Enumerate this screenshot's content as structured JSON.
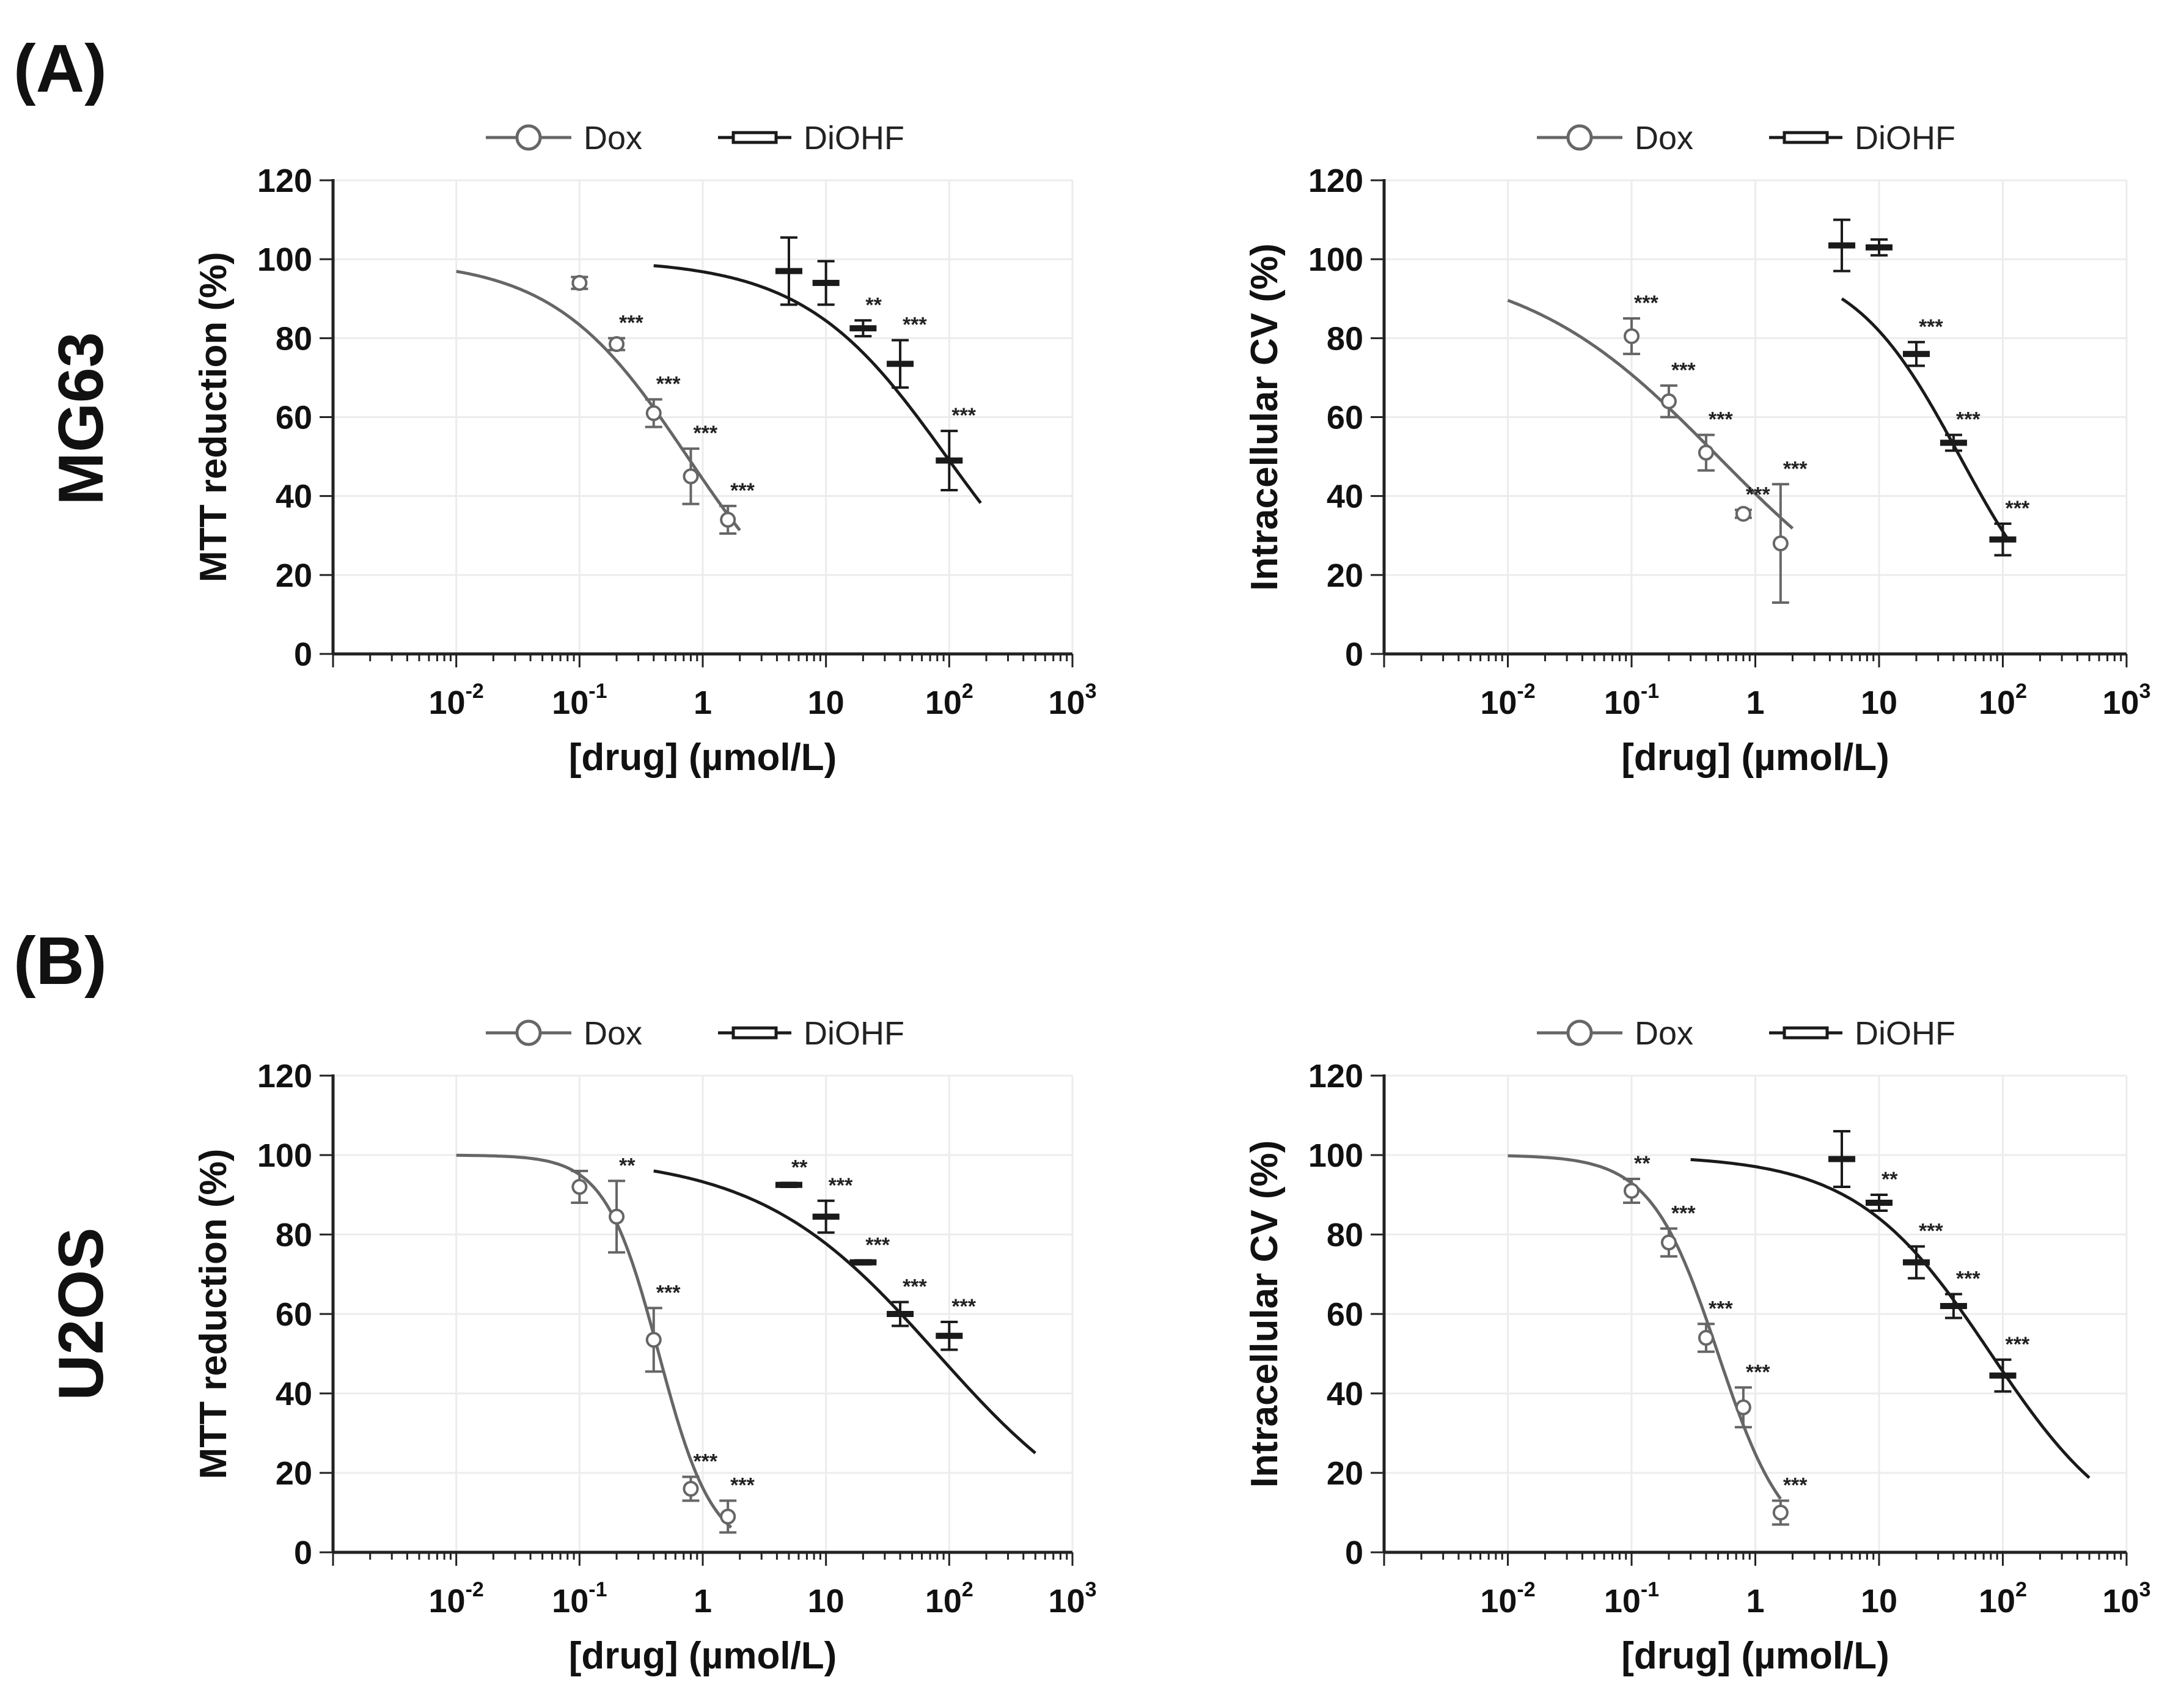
{
  "panels": [
    {
      "letter": "(A)",
      "row_label": "MG63"
    },
    {
      "letter": "(B)",
      "row_label": "U2OS"
    }
  ],
  "legend": {
    "dox": "Dox",
    "diohf": "DiOHF"
  },
  "x_tick_labels": [
    {
      "base": "10",
      "sup": "-2"
    },
    {
      "base": "10",
      "sup": "-1"
    },
    {
      "base": "1",
      "sup": ""
    },
    {
      "base": "10",
      "sup": ""
    },
    {
      "base": "10",
      "sup": "2"
    },
    {
      "base": "10",
      "sup": "3"
    }
  ],
  "y_tick_labels": [
    "0",
    "20",
    "40",
    "60",
    "80",
    "100",
    "120"
  ],
  "colors": {
    "dox": "#666666",
    "diohf": "#1a1a1a",
    "grid": "#ececec",
    "axis": "#222222"
  },
  "chart_data": [
    {
      "id": "A-MTT",
      "type": "scatter",
      "title": "",
      "xlabel": "[drug] (µmol/L)",
      "ylabel": "MTT reduction (%)",
      "xscale": "log",
      "xlim": [
        0.001,
        1000
      ],
      "ylim": [
        0,
        120
      ],
      "grid": true,
      "legend_position": "top",
      "series": [
        {
          "name": "Dox",
          "marker": "circle",
          "x": [
            0.1,
            0.2,
            0.4,
            0.8,
            1.6
          ],
          "y": [
            94,
            78.5,
            61,
            45,
            34
          ],
          "err": [
            1.5,
            1.5,
            3.5,
            7,
            3.5
          ],
          "sig": [
            "",
            "***",
            "***",
            "***",
            "***"
          ],
          "fit": {
            "top": 100,
            "bottom": 0,
            "ec50": 0.75,
            "hill": 0.8,
            "xrange": [
              0.01,
              2
            ]
          }
        },
        {
          "name": "DiOHF",
          "marker": "dash",
          "x": [
            5,
            10,
            20,
            40,
            100
          ],
          "y": [
            97,
            94,
            82.5,
            73.5,
            49
          ],
          "err": [
            8.5,
            5.5,
            2,
            6,
            7.5
          ],
          "sig": [
            "",
            "",
            "**",
            "***",
            "***"
          ],
          "fit": {
            "top": 100,
            "bottom": 0,
            "ec50": 95,
            "hill": 0.75,
            "xrange": [
              0.4,
              180
            ]
          }
        }
      ]
    },
    {
      "id": "A-CV",
      "type": "scatter",
      "title": "",
      "xlabel": "[drug] (µmol/L)",
      "ylabel": "Intracellular CV (%)",
      "xscale": "log",
      "xlim": [
        0.001,
        1000
      ],
      "ylim": [
        0,
        120
      ],
      "grid": true,
      "legend_position": "top",
      "series": [
        {
          "name": "Dox",
          "marker": "circle",
          "x": [
            0.1,
            0.2,
            0.4,
            0.8,
            1.6
          ],
          "y": [
            80.5,
            64,
            51,
            35.5,
            28
          ],
          "err": [
            4.5,
            4,
            4.5,
            1,
            15
          ],
          "sig": [
            "***",
            "***",
            "***",
            "***",
            "***"
          ],
          "fit": {
            "top": 100,
            "bottom": 0,
            "ec50": 0.5,
            "hill": 0.55,
            "xrange": [
              0.01,
              2
            ]
          }
        },
        {
          "name": "DiOHF",
          "marker": "dash",
          "x": [
            5,
            10,
            20,
            40,
            100
          ],
          "y": [
            103.5,
            103,
            76,
            53.5,
            29
          ],
          "err": [
            6.5,
            2,
            3,
            2,
            4
          ],
          "sig": [
            "",
            "",
            "***",
            "***",
            "***"
          ],
          "fit": {
            "top": 100,
            "bottom": 0,
            "ec50": 45,
            "hill": 1.0,
            "xrange": [
              5,
              110
            ]
          }
        }
      ]
    },
    {
      "id": "B-MTT",
      "type": "scatter",
      "title": "",
      "xlabel": "[drug] (µmol/L)",
      "ylabel": "MTT reduction (%)",
      "xscale": "log",
      "xlim": [
        0.001,
        1000
      ],
      "ylim": [
        0,
        120
      ],
      "grid": true,
      "legend_position": "top",
      "series": [
        {
          "name": "Dox",
          "marker": "circle",
          "x": [
            0.1,
            0.2,
            0.4,
            0.8,
            1.6
          ],
          "y": [
            92,
            84.5,
            53.5,
            16,
            9
          ],
          "err": [
            4,
            9,
            8,
            3,
            4
          ],
          "sig": [
            "",
            "**",
            "***",
            "***",
            "***"
          ],
          "fit": {
            "top": 100,
            "bottom": 0,
            "ec50": 0.44,
            "hill": 2.0,
            "xrange": [
              0.01,
              1.7
            ]
          }
        },
        {
          "name": "DiOHF",
          "marker": "dash",
          "x": [
            5,
            10,
            20,
            40,
            100
          ],
          "y": [
            92.5,
            84.5,
            73,
            60,
            54.5
          ],
          "err": [
            0.5,
            4,
            0.5,
            3,
            3.5
          ],
          "sig": [
            "**",
            "***",
            "***",
            "***",
            "***"
          ],
          "fit": {
            "top": 100,
            "bottom": 0,
            "ec50": 80,
            "hill": 0.6,
            "xrange": [
              0.4,
              500
            ]
          }
        }
      ]
    },
    {
      "id": "B-CV",
      "type": "scatter",
      "title": "",
      "xlabel": "[drug] (µmol/L)",
      "ylabel": "Intracellular CV (%)",
      "xscale": "log",
      "xlim": [
        0.001,
        1000
      ],
      "ylim": [
        0,
        120
      ],
      "grid": true,
      "legend_position": "top",
      "series": [
        {
          "name": "Dox",
          "marker": "circle",
          "x": [
            0.1,
            0.2,
            0.4,
            0.8,
            1.6
          ],
          "y": [
            91,
            78,
            54,
            36.5,
            10
          ],
          "err": [
            3,
            3.5,
            3.5,
            5,
            3
          ],
          "sig": [
            "**",
            "***",
            "***",
            "***",
            "***"
          ],
          "fit": {
            "top": 100,
            "bottom": 0,
            "ec50": 0.5,
            "hill": 1.6,
            "xrange": [
              0.01,
              1.6
            ]
          }
        },
        {
          "name": "DiOHF",
          "marker": "dash",
          "x": [
            5,
            10,
            20,
            40,
            100
          ],
          "y": [
            99,
            88,
            73,
            62,
            44.5
          ],
          "err": [
            7,
            2,
            4,
            3,
            4
          ],
          "sig": [
            "",
            "**",
            "***",
            "***",
            "***"
          ],
          "fit": {
            "top": 100,
            "bottom": 0,
            "ec50": 80,
            "hill": 0.8,
            "xrange": [
              0.3,
              500
            ]
          }
        }
      ]
    }
  ]
}
